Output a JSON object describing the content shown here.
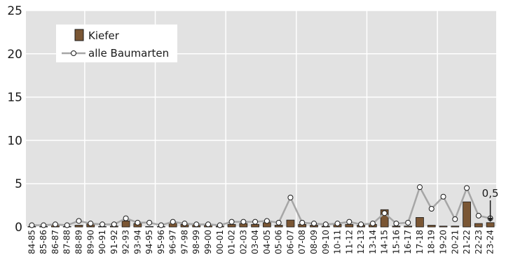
{
  "chart_data": {
    "type": "bar",
    "categories": [
      "84-85",
      "85-86",
      "86-87",
      "87-88",
      "88-89",
      "89-90",
      "90-91",
      "91-92",
      "92-93",
      "93-94",
      "94-95",
      "95-96",
      "96-97",
      "97-98",
      "98-99",
      "99-00",
      "00-01",
      "01-02",
      "02-03",
      "03-04",
      "04-05",
      "05-06",
      "06-07",
      "07-08",
      "08-09",
      "09-10",
      "10-11",
      "11-12",
      "12-13",
      "13-14",
      "14-15",
      "15-16",
      "16-17",
      "17-18",
      "18-19",
      "19-20",
      "20-21",
      "21-22",
      "22-23",
      "23-24"
    ],
    "series": [
      {
        "name": "Kiefer",
        "kind": "bar",
        "color": "#7a5634",
        "values": [
          0.05,
          0.05,
          0.3,
          0.05,
          0.2,
          0.4,
          0.05,
          0.1,
          0.7,
          0.4,
          0.05,
          0.05,
          0.5,
          0.3,
          0.3,
          0.2,
          0.1,
          0.3,
          0.4,
          0.3,
          0.5,
          0.2,
          0.8,
          0.3,
          0.2,
          0.1,
          0.3,
          0.3,
          0.2,
          0.3,
          2.0,
          0.1,
          0.1,
          1.1,
          0.2,
          0.1,
          0.1,
          2.9,
          0.4,
          0.5
        ]
      },
      {
        "name": "alle Baumarten",
        "kind": "line",
        "color": "#a6a6a6",
        "values": [
          0.2,
          0.2,
          0.3,
          0.2,
          0.7,
          0.4,
          0.3,
          0.3,
          1.0,
          0.5,
          0.5,
          0.2,
          0.6,
          0.4,
          0.3,
          0.3,
          0.2,
          0.6,
          0.6,
          0.6,
          0.7,
          0.5,
          3.4,
          0.5,
          0.4,
          0.3,
          0.4,
          0.6,
          0.3,
          0.4,
          1.6,
          0.4,
          0.5,
          4.6,
          2.1,
          3.5,
          0.9,
          4.5,
          1.3,
          1.0
        ]
      }
    ],
    "ylim": [
      0,
      25
    ],
    "yticks": [
      0,
      5,
      10,
      15,
      20,
      25
    ],
    "grid": true,
    "legend_position": "top-left",
    "annotation": {
      "label": "0,5",
      "category": "23-24",
      "value": 0.5
    }
  }
}
